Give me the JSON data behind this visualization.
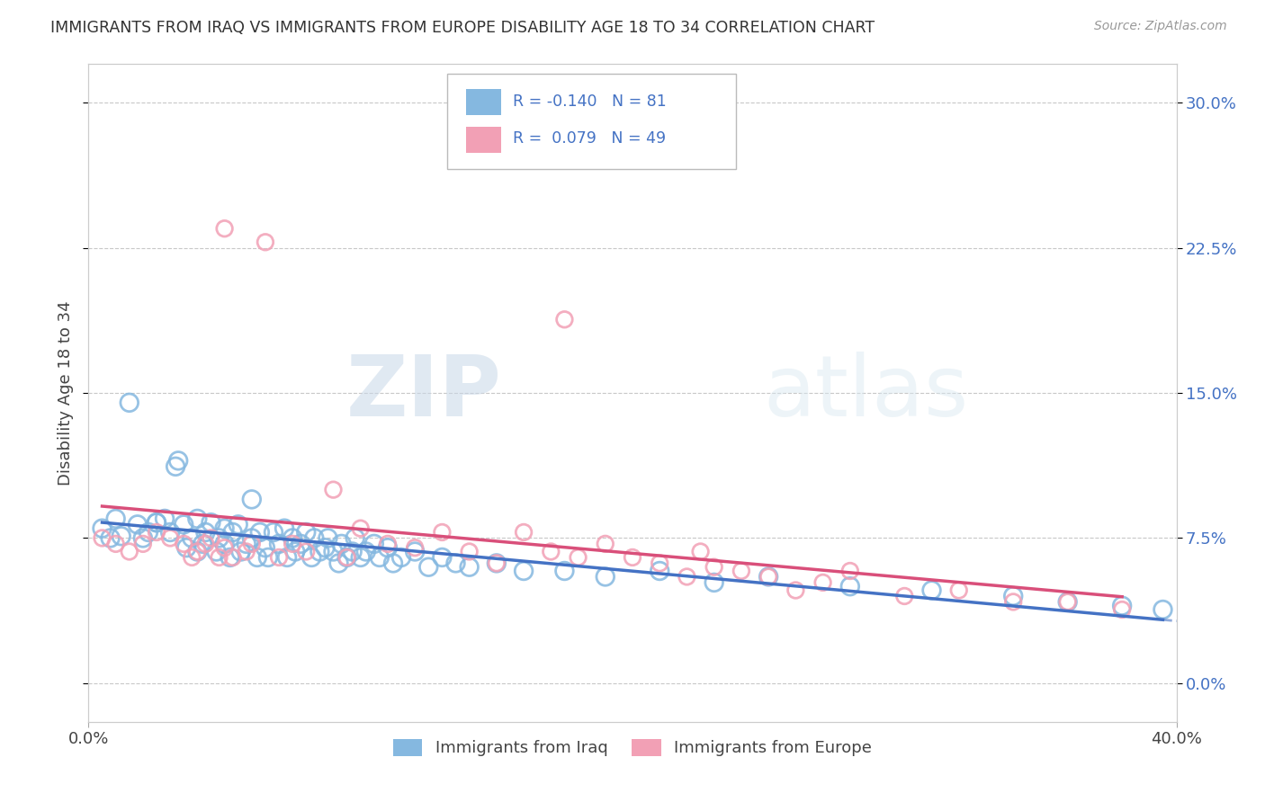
{
  "title": "IMMIGRANTS FROM IRAQ VS IMMIGRANTS FROM EUROPE DISABILITY AGE 18 TO 34 CORRELATION CHART",
  "source": "Source: ZipAtlas.com",
  "ylabel": "Disability Age 18 to 34",
  "xlim": [
    0.0,
    0.4
  ],
  "ylim": [
    -0.02,
    0.32
  ],
  "xticks": [
    0.0,
    0.4
  ],
  "xticklabels": [
    "0.0%",
    "40.0%"
  ],
  "yticks": [
    0.0,
    0.075,
    0.15,
    0.225,
    0.3
  ],
  "right_yticklabels": [
    "0.0%",
    "7.5%",
    "15.0%",
    "22.5%",
    "30.0%"
  ],
  "legend_iraq_label": "Immigrants from Iraq",
  "legend_europe_label": "Immigrants from Europe",
  "iraq_color": "#85b8e0",
  "europe_color": "#f2a0b5",
  "iraq_line_color": "#4472c4",
  "europe_line_color": "#d94f7a",
  "R_iraq": -0.14,
  "N_iraq": 81,
  "R_europe": 0.079,
  "N_europe": 49,
  "watermark_zip": "ZIP",
  "watermark_atlas": "atlas",
  "background_color": "#ffffff",
  "grid_color": "#c8c8c8",
  "iraq_x": [
    0.005,
    0.008,
    0.01,
    0.012,
    0.015,
    0.018,
    0.02,
    0.022,
    0.025,
    0.028,
    0.03,
    0.032,
    0.033,
    0.035,
    0.036,
    0.038,
    0.04,
    0.04,
    0.042,
    0.043,
    0.045,
    0.047,
    0.048,
    0.05,
    0.05,
    0.052,
    0.053,
    0.055,
    0.056,
    0.058,
    0.06,
    0.06,
    0.062,
    0.063,
    0.065,
    0.066,
    0.068,
    0.07,
    0.072,
    0.073,
    0.075,
    0.076,
    0.078,
    0.08,
    0.082,
    0.083,
    0.085,
    0.087,
    0.088,
    0.09,
    0.092,
    0.093,
    0.095,
    0.097,
    0.098,
    0.1,
    0.102,
    0.105,
    0.107,
    0.11,
    0.112,
    0.115,
    0.12,
    0.125,
    0.13,
    0.135,
    0.14,
    0.15,
    0.16,
    0.175,
    0.19,
    0.21,
    0.23,
    0.25,
    0.28,
    0.31,
    0.34,
    0.36,
    0.38,
    0.395,
    0.025
  ],
  "iraq_y": [
    0.08,
    0.075,
    0.085,
    0.076,
    0.145,
    0.082,
    0.075,
    0.078,
    0.083,
    0.085,
    0.078,
    0.112,
    0.115,
    0.082,
    0.07,
    0.075,
    0.068,
    0.085,
    0.072,
    0.078,
    0.083,
    0.068,
    0.075,
    0.08,
    0.072,
    0.065,
    0.078,
    0.082,
    0.068,
    0.072,
    0.075,
    0.095,
    0.065,
    0.078,
    0.07,
    0.065,
    0.078,
    0.072,
    0.08,
    0.065,
    0.075,
    0.068,
    0.072,
    0.078,
    0.065,
    0.075,
    0.068,
    0.07,
    0.075,
    0.068,
    0.062,
    0.072,
    0.065,
    0.068,
    0.075,
    0.065,
    0.068,
    0.072,
    0.065,
    0.07,
    0.062,
    0.065,
    0.068,
    0.06,
    0.065,
    0.062,
    0.06,
    0.062,
    0.058,
    0.058,
    0.055,
    0.058,
    0.052,
    0.055,
    0.05,
    0.048,
    0.045,
    0.042,
    0.04,
    0.038,
    0.083
  ],
  "europe_x": [
    0.005,
    0.01,
    0.015,
    0.02,
    0.025,
    0.03,
    0.035,
    0.038,
    0.04,
    0.043,
    0.045,
    0.048,
    0.05,
    0.053,
    0.058,
    0.06,
    0.065,
    0.07,
    0.075,
    0.08,
    0.09,
    0.095,
    0.1,
    0.11,
    0.12,
    0.13,
    0.14,
    0.15,
    0.16,
    0.17,
    0.175,
    0.18,
    0.19,
    0.2,
    0.21,
    0.22,
    0.225,
    0.23,
    0.24,
    0.25,
    0.26,
    0.27,
    0.28,
    0.3,
    0.32,
    0.34,
    0.36,
    0.38,
    0.05
  ],
  "europe_y": [
    0.075,
    0.072,
    0.068,
    0.072,
    0.078,
    0.075,
    0.072,
    0.065,
    0.068,
    0.072,
    0.075,
    0.065,
    0.07,
    0.065,
    0.068,
    0.072,
    0.228,
    0.065,
    0.072,
    0.068,
    0.1,
    0.065,
    0.08,
    0.072,
    0.07,
    0.078,
    0.068,
    0.062,
    0.078,
    0.068,
    0.188,
    0.065,
    0.072,
    0.065,
    0.062,
    0.055,
    0.068,
    0.06,
    0.058,
    0.055,
    0.048,
    0.052,
    0.058,
    0.045,
    0.048,
    0.042,
    0.042,
    0.038,
    0.235
  ]
}
